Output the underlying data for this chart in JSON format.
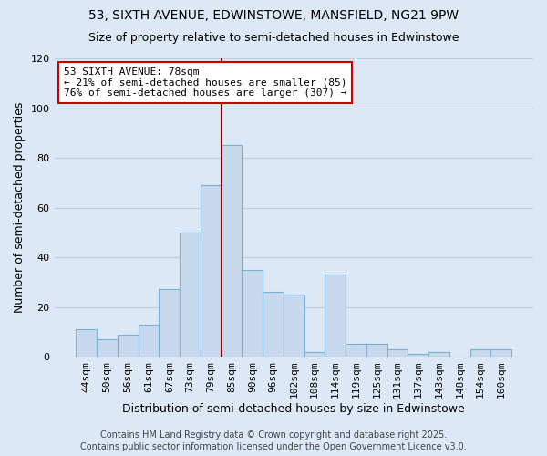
{
  "title": "53, SIXTH AVENUE, EDWINSTOWE, MANSFIELD, NG21 9PW",
  "subtitle": "Size of property relative to semi-detached houses in Edwinstowe",
  "xlabel": "Distribution of semi-detached houses by size in Edwinstowe",
  "ylabel": "Number of semi-detached properties",
  "categories": [
    "44sqm",
    "50sqm",
    "56sqm",
    "61sqm",
    "67sqm",
    "73sqm",
    "79sqm",
    "85sqm",
    "90sqm",
    "96sqm",
    "102sqm",
    "108sqm",
    "114sqm",
    "119sqm",
    "125sqm",
    "131sqm",
    "137sqm",
    "143sqm",
    "148sqm",
    "154sqm",
    "160sqm"
  ],
  "values": [
    11,
    7,
    9,
    13,
    27,
    50,
    69,
    85,
    35,
    26,
    25,
    2,
    33,
    5,
    5,
    3,
    1,
    2,
    0,
    3,
    3
  ],
  "bar_color": "#c9d9ed",
  "bar_edge_color": "#7bafd4",
  "vline_color": "#8b0000",
  "ylim": [
    0,
    120
  ],
  "yticks": [
    0,
    20,
    40,
    60,
    80,
    100,
    120
  ],
  "annotation_title": "53 SIXTH AVENUE: 78sqm",
  "annotation_line1": "← 21% of semi-detached houses are smaller (85)",
  "annotation_line2": "76% of semi-detached houses are larger (307) →",
  "annotation_box_color": "white",
  "annotation_box_edge_color": "#cc0000",
  "footer1": "Contains HM Land Registry data © Crown copyright and database right 2025.",
  "footer2": "Contains public sector information licensed under the Open Government Licence v3.0.",
  "background_color": "#dce8f5",
  "plot_bg_color": "#dce8f5",
  "grid_color": "#c0cdd8",
  "title_fontsize": 10,
  "subtitle_fontsize": 9,
  "axis_label_fontsize": 9,
  "tick_fontsize": 8,
  "annotation_fontsize": 8,
  "footer_fontsize": 7
}
